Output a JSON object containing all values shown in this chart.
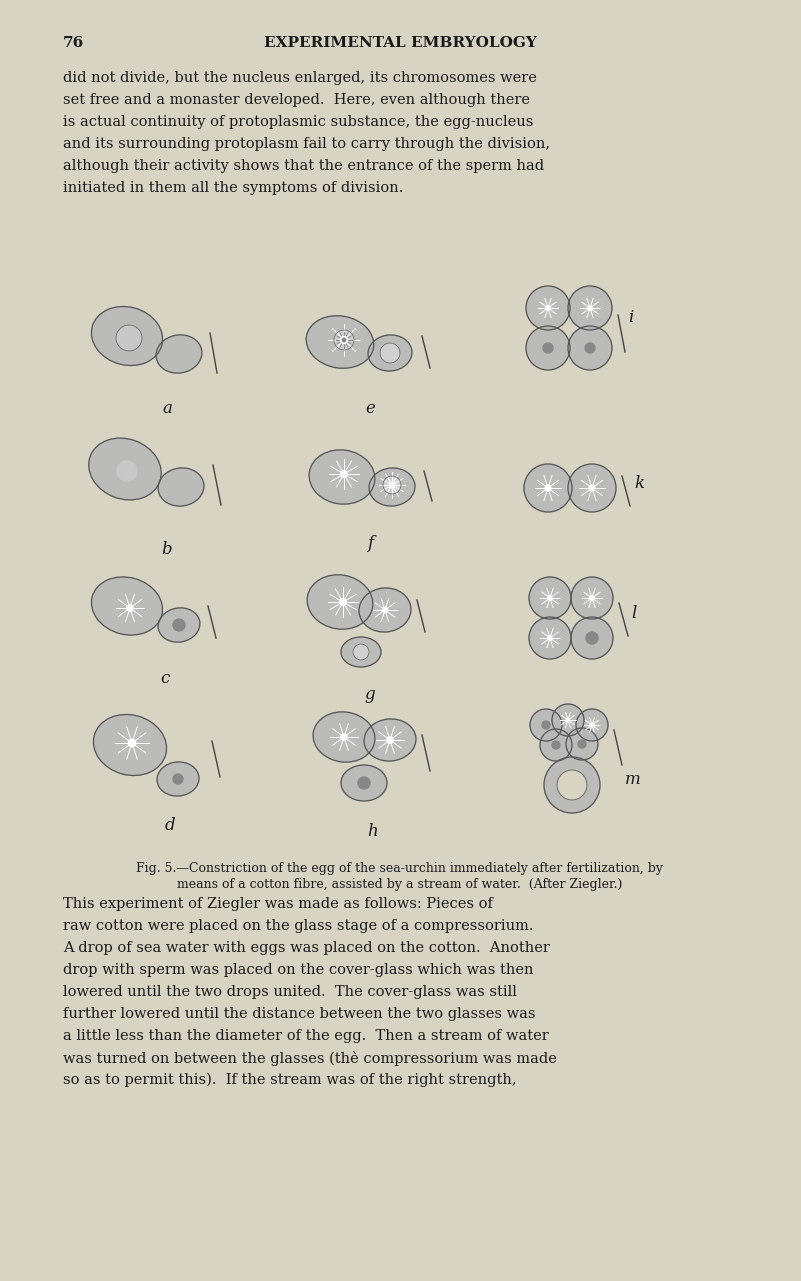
{
  "bg_color": "#d8d4c4",
  "page_num": "76",
  "page_header": "EXPERIMENTAL EMBRYOLOGY",
  "top_text": [
    "did not divide, but the nucleus enlarged, its chromosomes were",
    "set free and a monaster developed.  Here, even although there",
    "is actual continuity of protoplasmic substance, the egg-nucleus",
    "and its surrounding protoplasm fail to carry through the division,",
    "although their activity shows that the entrance of the sperm had",
    "initiated in them all the symptoms of division."
  ],
  "caption_line1": "Fig. 5.—Constriction of the egg of the sea-urchin immediately after fertilization, by",
  "caption_line2": "means of a cotton fibre, assisted by a stream of water.  (After Ziegler.)",
  "bottom_text": [
    "This experiment of Ziegler was made as follows: Pieces of",
    "raw cotton were placed on the glass stage of a compressorium.",
    "A drop of sea water with eggs was placed on the cotton.  Another",
    "drop with sperm was placed on the cover-glass which was then",
    "lowered until the two drops united.  The cover-glass was still",
    "further lowered until the distance between the two glasses was",
    "a little less than the diameter of the egg.  Then a stream of water",
    "was turned on between the glasses (thè compressorium was made",
    "so as to permit this).  If the stream was of the right strength,"
  ],
  "text_color": "#1a1a1a",
  "cell_color": "#b8b8b8",
  "cell_edge": "#555555",
  "inner_color": "#d0d0d0",
  "figure_labels": [
    "a",
    "b",
    "c",
    "d",
    "e",
    "f",
    "g",
    "h",
    "i",
    "k",
    "l",
    "m"
  ]
}
